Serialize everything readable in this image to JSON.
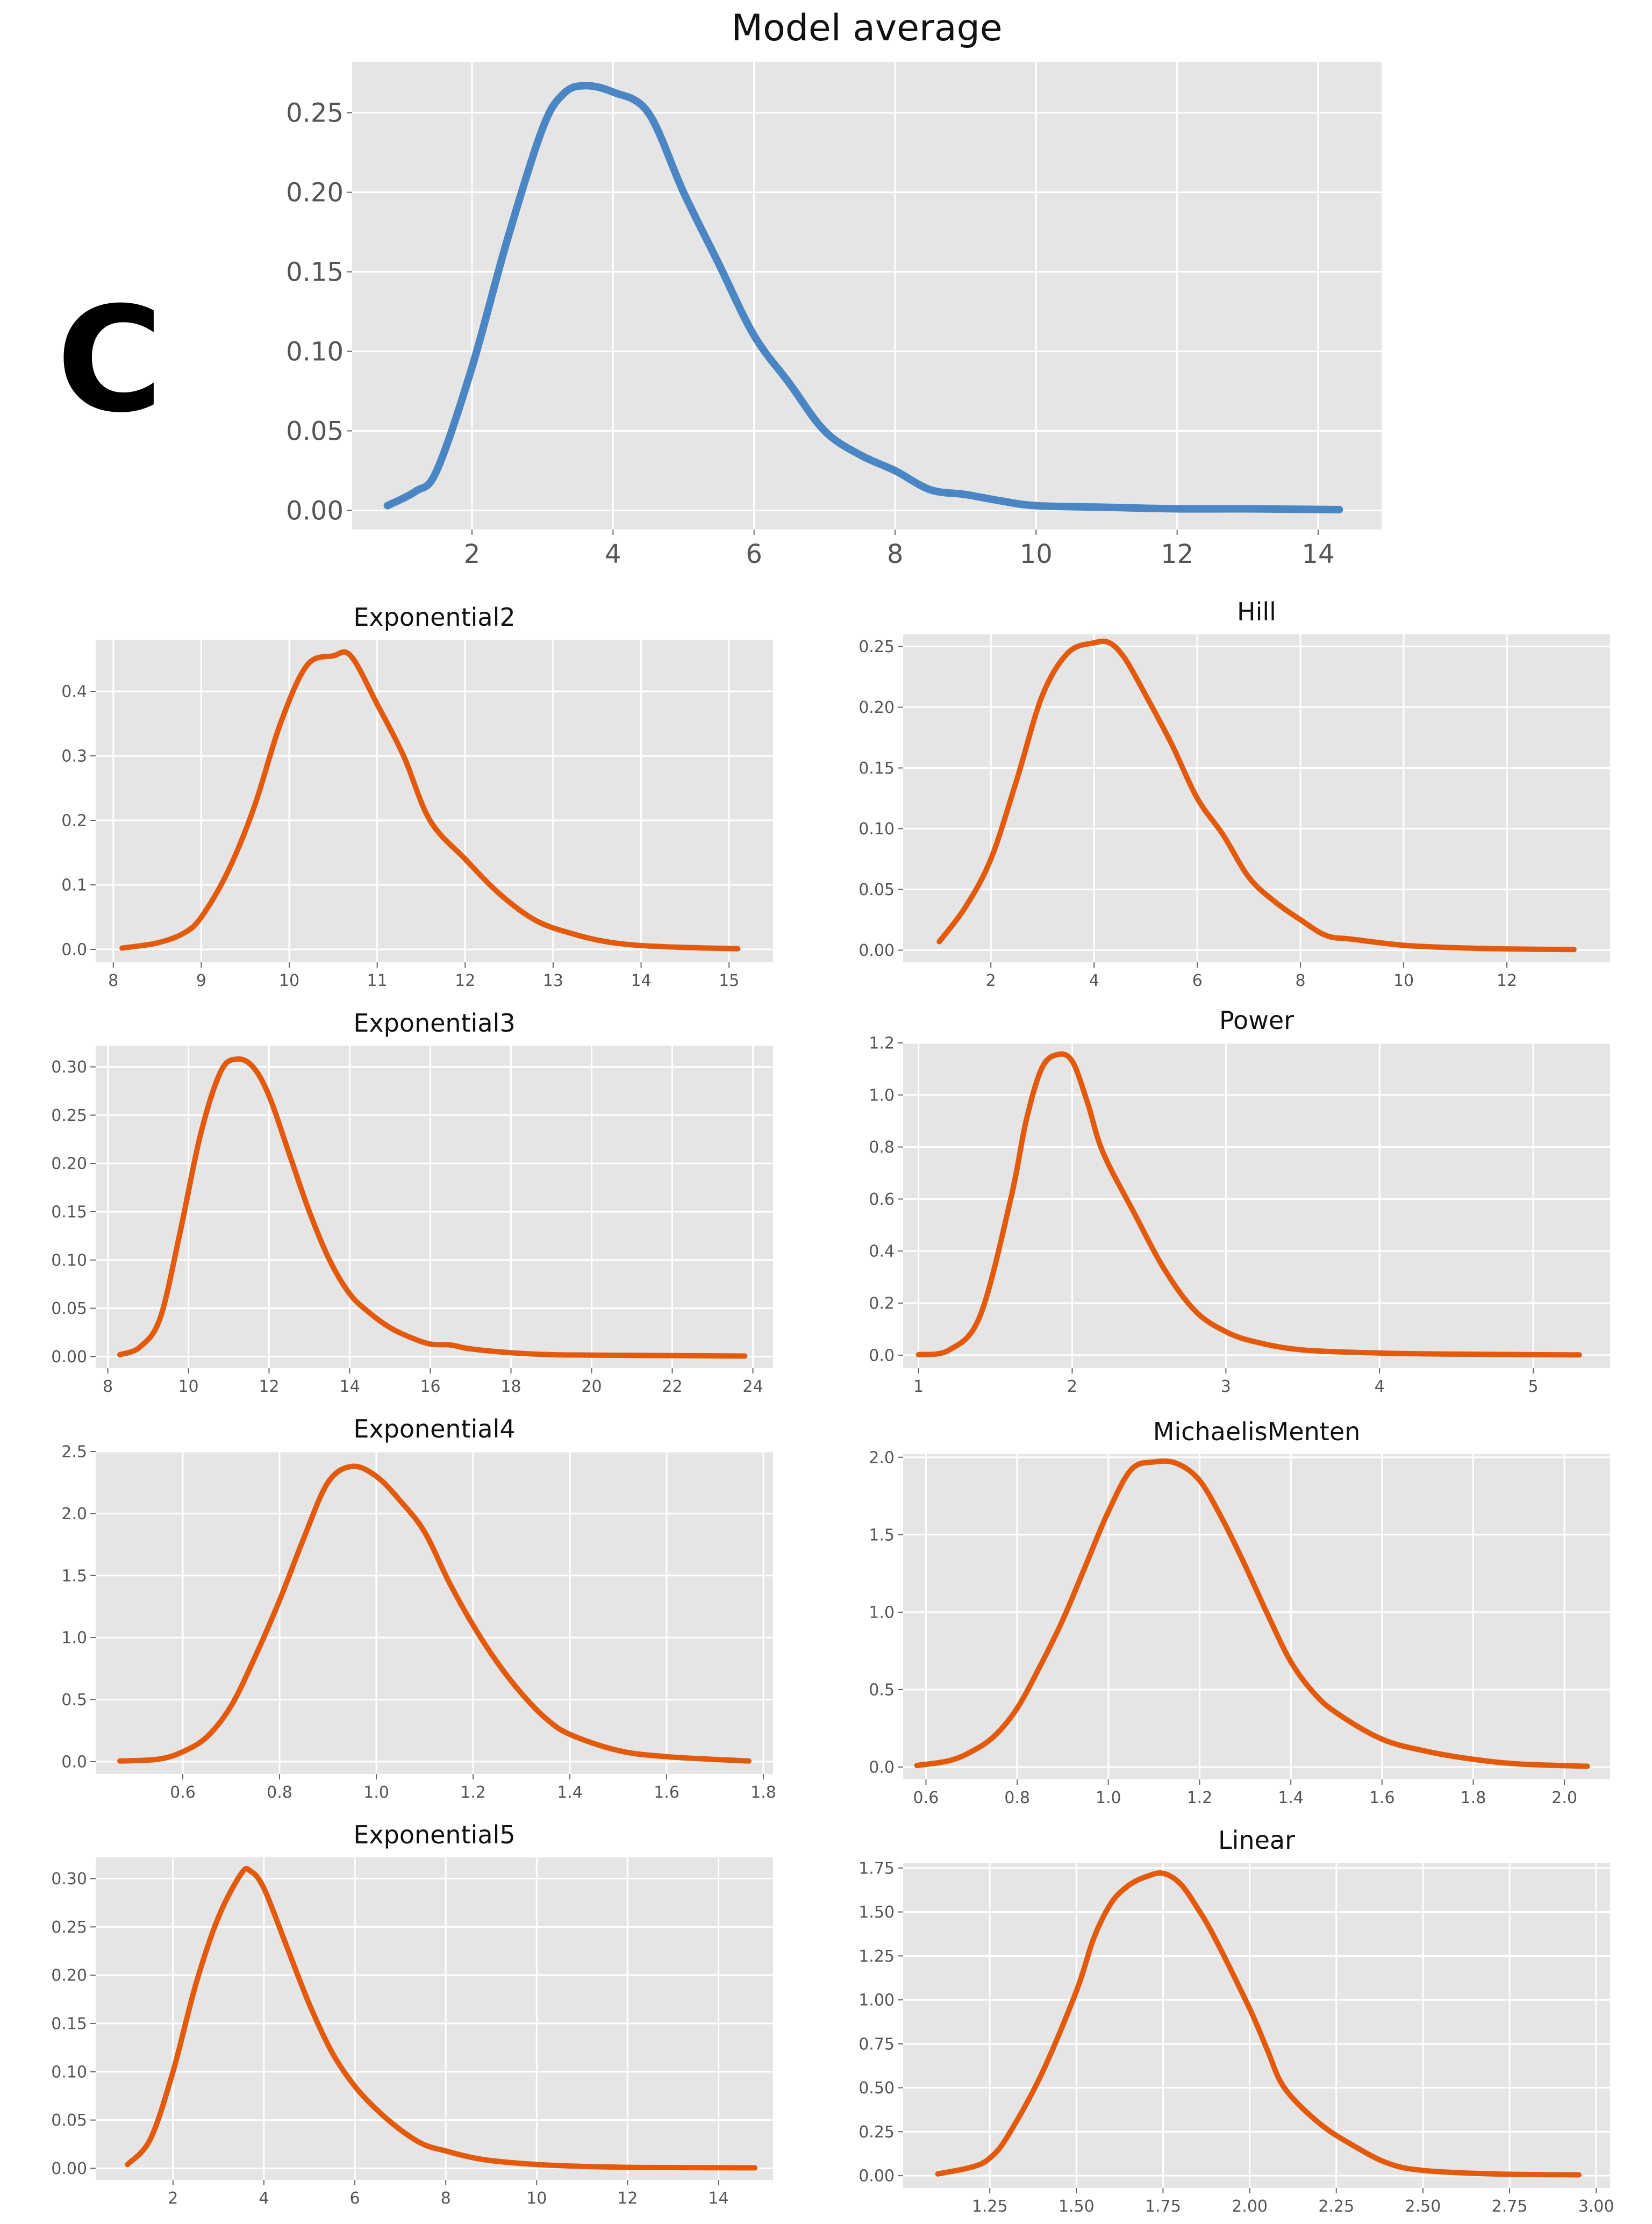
{
  "panel_label": "C",
  "colors": {
    "average": "#4a86c4",
    "model": "#e35a0c",
    "plot_bg": "#e5e5e5",
    "grid": "#ffffff"
  },
  "chart_data": [
    {
      "type": "line",
      "title": "Model average",
      "color": "#4a86c4",
      "xlim": [
        0.3,
        14.9
      ],
      "ylim": [
        -0.012,
        0.282
      ],
      "xticks": [
        2,
        4,
        6,
        8,
        10,
        12,
        14
      ],
      "xtick_labels": [
        "2",
        "4",
        "6",
        "8",
        "10",
        "12",
        "14"
      ],
      "yticks": [
        0,
        0.05,
        0.1,
        0.15,
        0.2,
        0.25
      ],
      "ytick_labels": [
        "0.00",
        "0.05",
        "0.10",
        "0.15",
        "0.20",
        "0.25"
      ],
      "x": [
        0.8,
        1.2,
        1.5,
        2.0,
        2.5,
        3.0,
        3.3,
        3.6,
        4.0,
        4.5,
        5.0,
        5.5,
        6.0,
        6.5,
        7.0,
        7.5,
        8.0,
        8.5,
        9.0,
        9.5,
        10,
        11,
        12,
        13,
        14.3
      ],
      "y": [
        0.003,
        0.012,
        0.025,
        0.09,
        0.17,
        0.24,
        0.262,
        0.267,
        0.263,
        0.25,
        0.2,
        0.155,
        0.11,
        0.08,
        0.05,
        0.035,
        0.025,
        0.013,
        0.01,
        0.006,
        0.003,
        0.002,
        0.001,
        0.001,
        0.0005
      ]
    },
    {
      "type": "line",
      "title": "Exponential2",
      "color": "#e35a0c",
      "xlim": [
        7.8,
        15.5
      ],
      "ylim": [
        -0.02,
        0.48
      ],
      "xticks": [
        8,
        9,
        10,
        11,
        12,
        13,
        14,
        15
      ],
      "xtick_labels": [
        "8",
        "9",
        "10",
        "11",
        "12",
        "13",
        "14",
        "15"
      ],
      "yticks": [
        0,
        0.1,
        0.2,
        0.3,
        0.4
      ],
      "ytick_labels": [
        "0.0",
        "0.1",
        "0.2",
        "0.3",
        "0.4"
      ],
      "x": [
        8.1,
        8.5,
        8.8,
        9.0,
        9.3,
        9.6,
        9.9,
        10.2,
        10.5,
        10.7,
        11.0,
        11.3,
        11.6,
        12.0,
        12.4,
        12.8,
        13.2,
        13.6,
        14.0,
        14.5,
        15.1
      ],
      "y": [
        0.002,
        0.01,
        0.025,
        0.05,
        0.12,
        0.22,
        0.35,
        0.44,
        0.455,
        0.455,
        0.38,
        0.3,
        0.2,
        0.14,
        0.085,
        0.045,
        0.025,
        0.012,
        0.006,
        0.003,
        0.001
      ]
    },
    {
      "type": "line",
      "title": "Hill",
      "color": "#e35a0c",
      "xlim": [
        0.3,
        14.0
      ],
      "ylim": [
        -0.01,
        0.26
      ],
      "xticks": [
        2,
        4,
        6,
        8,
        10,
        12
      ],
      "xtick_labels": [
        "2",
        "4",
        "6",
        "8",
        "10",
        "12"
      ],
      "yticks": [
        0,
        0.05,
        0.1,
        0.15,
        0.2,
        0.25
      ],
      "ytick_labels": [
        "0.00",
        "0.05",
        "0.10",
        "0.15",
        "0.20",
        "0.25"
      ],
      "x": [
        1.0,
        1.5,
        2.0,
        2.5,
        3.0,
        3.5,
        4.0,
        4.3,
        4.6,
        5.0,
        5.5,
        6.0,
        6.5,
        7.0,
        7.5,
        8.0,
        8.5,
        9.0,
        10,
        11,
        12,
        13.3
      ],
      "y": [
        0.007,
        0.035,
        0.075,
        0.14,
        0.21,
        0.245,
        0.253,
        0.253,
        0.24,
        0.21,
        0.17,
        0.125,
        0.095,
        0.06,
        0.04,
        0.025,
        0.012,
        0.009,
        0.004,
        0.002,
        0.001,
        0.0005
      ]
    },
    {
      "type": "line",
      "title": "Exponential3",
      "color": "#e35a0c",
      "xlim": [
        7.7,
        24.5
      ],
      "ylim": [
        -0.012,
        0.322
      ],
      "xticks": [
        8,
        10,
        12,
        14,
        16,
        18,
        20,
        22,
        24
      ],
      "xtick_labels": [
        "8",
        "10",
        "12",
        "14",
        "16",
        "18",
        "20",
        "22",
        "24"
      ],
      "yticks": [
        0,
        0.05,
        0.1,
        0.15,
        0.2,
        0.25,
        0.3
      ],
      "ytick_labels": [
        "0.00",
        "0.05",
        "0.10",
        "0.15",
        "0.20",
        "0.25",
        "0.30"
      ],
      "x": [
        8.3,
        8.8,
        9.3,
        9.8,
        10.3,
        10.8,
        11.2,
        11.6,
        12.0,
        12.5,
        13.0,
        13.5,
        14.0,
        14.5,
        15.0,
        15.5,
        16.0,
        16.5,
        17.0,
        18.0,
        19.0,
        20,
        22,
        23.8
      ],
      "y": [
        0.002,
        0.01,
        0.04,
        0.13,
        0.23,
        0.295,
        0.308,
        0.3,
        0.27,
        0.21,
        0.15,
        0.1,
        0.065,
        0.045,
        0.03,
        0.02,
        0.013,
        0.012,
        0.008,
        0.004,
        0.002,
        0.0015,
        0.001,
        0.0005
      ]
    },
    {
      "type": "line",
      "title": "Power",
      "color": "#e35a0c",
      "xlim": [
        0.9,
        5.5
      ],
      "ylim": [
        -0.05,
        1.2
      ],
      "xticks": [
        1,
        2,
        3,
        4,
        5
      ],
      "xtick_labels": [
        "1",
        "2",
        "3",
        "4",
        "5"
      ],
      "yticks": [
        0,
        0.2,
        0.4,
        0.6,
        0.8,
        1.0,
        1.2
      ],
      "ytick_labels": [
        "0.0",
        "0.2",
        "0.4",
        "0.6",
        "0.8",
        "1.0",
        "1.2"
      ],
      "x": [
        1.0,
        1.2,
        1.4,
        1.6,
        1.7,
        1.8,
        1.9,
        2.0,
        2.1,
        2.2,
        2.4,
        2.6,
        2.8,
        3.0,
        3.2,
        3.5,
        4.0,
        4.5,
        5.3
      ],
      "y": [
        0.002,
        0.02,
        0.15,
        0.6,
        0.9,
        1.1,
        1.155,
        1.13,
        0.97,
        0.78,
        0.55,
        0.33,
        0.17,
        0.09,
        0.05,
        0.02,
        0.008,
        0.004,
        0.001
      ]
    },
    {
      "type": "line",
      "title": "Exponential4",
      "color": "#e35a0c",
      "xlim": [
        0.42,
        1.82
      ],
      "ylim": [
        -0.1,
        2.5
      ],
      "xticks": [
        0.6,
        0.8,
        1.0,
        1.2,
        1.4,
        1.6,
        1.8
      ],
      "xtick_labels": [
        "0.6",
        "0.8",
        "1.0",
        "1.2",
        "1.4",
        "1.6",
        "1.8"
      ],
      "yticks": [
        0,
        0.5,
        1.0,
        1.5,
        2.0,
        2.5
      ],
      "ytick_labels": [
        "0.0",
        "0.5",
        "1.0",
        "1.5",
        "2.0",
        "2.5"
      ],
      "x": [
        0.47,
        0.55,
        0.6,
        0.65,
        0.7,
        0.75,
        0.8,
        0.85,
        0.9,
        0.95,
        1.0,
        1.05,
        1.1,
        1.15,
        1.2,
        1.25,
        1.3,
        1.35,
        1.4,
        1.5,
        1.6,
        1.77
      ],
      "y": [
        0.005,
        0.02,
        0.08,
        0.2,
        0.45,
        0.85,
        1.3,
        1.8,
        2.25,
        2.38,
        2.3,
        2.1,
        1.85,
        1.45,
        1.1,
        0.8,
        0.55,
        0.35,
        0.22,
        0.09,
        0.04,
        0.005
      ]
    },
    {
      "type": "line",
      "title": "MichaelisMenten",
      "color": "#e35a0c",
      "xlim": [
        0.55,
        2.1
      ],
      "ylim": [
        -0.08,
        2.02
      ],
      "xticks": [
        0.6,
        0.8,
        1.0,
        1.2,
        1.4,
        1.6,
        1.8,
        2.0
      ],
      "xtick_labels": [
        "0.6",
        "0.8",
        "1.0",
        "1.2",
        "1.4",
        "1.6",
        "1.8",
        "2.0"
      ],
      "yticks": [
        0,
        0.5,
        1.0,
        1.5,
        2.0
      ],
      "ytick_labels": [
        "0.0",
        "0.5",
        "1.0",
        "1.5",
        "2.0"
      ],
      "x": [
        0.58,
        0.65,
        0.7,
        0.75,
        0.8,
        0.85,
        0.9,
        0.95,
        1.0,
        1.05,
        1.1,
        1.15,
        1.2,
        1.25,
        1.3,
        1.35,
        1.4,
        1.45,
        1.5,
        1.6,
        1.7,
        1.8,
        1.9,
        2.05
      ],
      "y": [
        0.01,
        0.04,
        0.1,
        0.2,
        0.38,
        0.65,
        0.95,
        1.3,
        1.65,
        1.92,
        1.97,
        1.96,
        1.85,
        1.6,
        1.3,
        0.98,
        0.68,
        0.48,
        0.35,
        0.18,
        0.1,
        0.05,
        0.02,
        0.005
      ]
    },
    {
      "type": "line",
      "title": "Exponential5",
      "color": "#e35a0c",
      "xlim": [
        0.3,
        15.2
      ],
      "ylim": [
        -0.012,
        0.322
      ],
      "xticks": [
        2,
        4,
        6,
        8,
        10,
        12,
        14
      ],
      "xtick_labels": [
        "2",
        "4",
        "6",
        "8",
        "10",
        "12",
        "14"
      ],
      "yticks": [
        0,
        0.05,
        0.1,
        0.15,
        0.2,
        0.25,
        0.3
      ],
      "ytick_labels": [
        "0.00",
        "0.05",
        "0.10",
        "0.15",
        "0.20",
        "0.25",
        "0.30"
      ],
      "x": [
        1.0,
        1.5,
        2.0,
        2.5,
        3.0,
        3.5,
        3.7,
        4.0,
        4.5,
        5.0,
        5.5,
        6.0,
        6.5,
        7.0,
        7.5,
        8.0,
        8.5,
        9.0,
        10,
        11,
        12,
        13,
        14.8
      ],
      "y": [
        0.004,
        0.03,
        0.1,
        0.19,
        0.26,
        0.305,
        0.308,
        0.29,
        0.23,
        0.17,
        0.12,
        0.085,
        0.06,
        0.04,
        0.025,
        0.018,
        0.012,
        0.008,
        0.004,
        0.002,
        0.001,
        0.0008,
        0.0005
      ]
    },
    {
      "type": "line",
      "title": "Linear",
      "color": "#e35a0c",
      "xlim": [
        1.0,
        3.04
      ],
      "ylim": [
        -0.07,
        1.78
      ],
      "xticks": [
        1.25,
        1.5,
        1.75,
        2.0,
        2.25,
        2.5,
        2.75,
        3.0
      ],
      "xtick_labels": [
        "1.25",
        "1.50",
        "1.75",
        "2.00",
        "2.25",
        "2.50",
        "2.75",
        "3.00"
      ],
      "yticks": [
        0,
        0.25,
        0.5,
        0.75,
        1.0,
        1.25,
        1.5,
        1.75
      ],
      "ytick_labels": [
        "0.00",
        "0.25",
        "0.50",
        "0.75",
        "1.00",
        "1.25",
        "1.50",
        "1.75"
      ],
      "x": [
        1.1,
        1.2,
        1.25,
        1.3,
        1.4,
        1.5,
        1.55,
        1.6,
        1.65,
        1.7,
        1.75,
        1.8,
        1.85,
        1.9,
        2.0,
        2.05,
        2.1,
        2.2,
        2.3,
        2.4,
        2.5,
        2.7,
        2.95
      ],
      "y": [
        0.01,
        0.05,
        0.1,
        0.22,
        0.58,
        1.05,
        1.35,
        1.55,
        1.65,
        1.7,
        1.72,
        1.66,
        1.52,
        1.35,
        0.95,
        0.72,
        0.5,
        0.3,
        0.17,
        0.07,
        0.03,
        0.01,
        0.005
      ]
    }
  ]
}
